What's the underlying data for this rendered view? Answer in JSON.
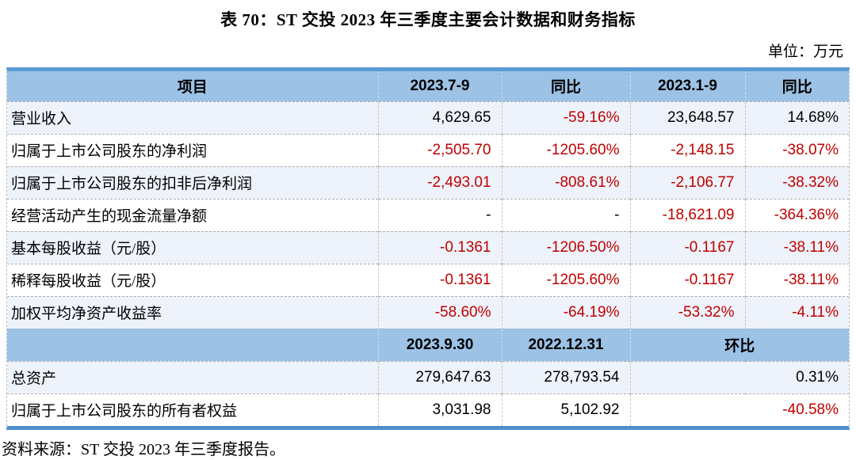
{
  "title": "表 70：ST 交投 2023 年三季度主要会计数据和财务指标",
  "unit_label": "单位：万元",
  "source_note": "资料来源：ST 交投 2023 年三季度报告。",
  "colors": {
    "accent_bar": "#5B9BD5",
    "header_bg": "#9CC2E5",
    "band_bg": "#EEF3FB",
    "negative_text": "#C00000"
  },
  "table": {
    "header1": {
      "item": "项目",
      "c1": "2023.7-9",
      "c2": "同比",
      "c3": "2023.1-9",
      "c4": "同比"
    },
    "rows_q": [
      {
        "label": "营业收入",
        "cells": [
          {
            "v": "4,629.65",
            "red": false
          },
          {
            "v": "-59.16%",
            "red": true
          },
          {
            "v": "23,648.57",
            "red": false
          },
          {
            "v": "14.68%",
            "red": false
          }
        ]
      },
      {
        "label": "归属于上市公司股东的净利润",
        "cells": [
          {
            "v": "-2,505.70",
            "red": true
          },
          {
            "v": "-1205.60%",
            "red": true
          },
          {
            "v": "-2,148.15",
            "red": true
          },
          {
            "v": "-38.07%",
            "red": true
          }
        ]
      },
      {
        "label": "归属于上市公司股东的扣非后净利润",
        "cells": [
          {
            "v": "-2,493.01",
            "red": true
          },
          {
            "v": "-808.61%",
            "red": true
          },
          {
            "v": "-2,106.77",
            "red": true
          },
          {
            "v": "-38.32%",
            "red": true
          }
        ]
      },
      {
        "label": "经营活动产生的现金流量净额",
        "cells": [
          {
            "v": "-",
            "red": false
          },
          {
            "v": "-",
            "red": false
          },
          {
            "v": "-18,621.09",
            "red": true
          },
          {
            "v": "-364.36%",
            "red": true
          }
        ]
      },
      {
        "label": "基本每股收益（元/股）",
        "cells": [
          {
            "v": "-0.1361",
            "red": true
          },
          {
            "v": "-1206.50%",
            "red": true
          },
          {
            "v": "-0.1167",
            "red": true
          },
          {
            "v": "-38.11%",
            "red": true
          }
        ]
      },
      {
        "label": "稀释每股收益（元/股）",
        "cells": [
          {
            "v": "-0.1361",
            "red": true
          },
          {
            "v": "-1205.60%",
            "red": true
          },
          {
            "v": "-0.1167",
            "red": true
          },
          {
            "v": "-38.11%",
            "red": true
          }
        ]
      },
      {
        "label": "加权平均净资产收益率",
        "cells": [
          {
            "v": "-58.60%",
            "red": true
          },
          {
            "v": "-64.19%",
            "red": true
          },
          {
            "v": "-53.32%",
            "red": true
          },
          {
            "v": "-4.11%",
            "red": true
          }
        ]
      }
    ],
    "header2": {
      "item": "",
      "c1": "2023.9.30",
      "c2": "2022.12.31",
      "c3": "环比"
    },
    "rows_b": [
      {
        "label": "总资产",
        "cells": [
          {
            "v": "279,647.63",
            "red": false
          },
          {
            "v": "278,793.54",
            "red": false
          },
          {
            "v": "0.31%",
            "red": false
          }
        ]
      },
      {
        "label": "归属于上市公司股东的所有者权益",
        "cells": [
          {
            "v": "3,031.98",
            "red": false
          },
          {
            "v": "5,102.92",
            "red": false
          },
          {
            "v": "-40.58%",
            "red": true
          }
        ]
      }
    ]
  }
}
